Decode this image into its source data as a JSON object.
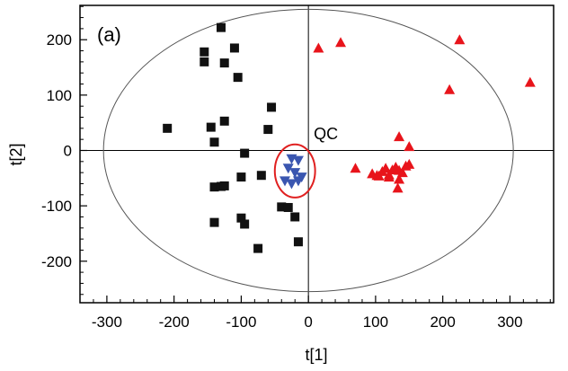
{
  "chart_data": {
    "type": "scatter",
    "title": "",
    "panel_label": "(a)",
    "xlabel": "t[1]",
    "ylabel": "t[2]",
    "xlim": [
      -340,
      365
    ],
    "ylim": [
      -275,
      262
    ],
    "xticks": [
      -300,
      -200,
      -100,
      0,
      100,
      200,
      300
    ],
    "yticks": [
      -200,
      -100,
      0,
      100,
      200
    ],
    "x_tick_labels": [
      "-300",
      "-200",
      "-100",
      "0",
      "100",
      "200",
      "300"
    ],
    "y_tick_labels": [
      "-200",
      "-100",
      "0",
      "100",
      "200"
    ],
    "grid": false,
    "legend": "none",
    "ellipse": {
      "center": [
        0,
        0
      ],
      "rx": 305,
      "ry": 255,
      "color": "#555555"
    },
    "qc_ellipse": {
      "center": [
        -20,
        -37
      ],
      "rx": 30,
      "ry": 48,
      "color": "#e02020"
    },
    "annotations": [
      {
        "text": "QC",
        "x": 8,
        "y": 20
      }
    ],
    "series": [
      {
        "marker": "square",
        "color": "#111111",
        "points": [
          [
            -130,
            222
          ],
          [
            -155,
            178
          ],
          [
            -110,
            185
          ],
          [
            -125,
            158
          ],
          [
            -155,
            160
          ],
          [
            -105,
            132
          ],
          [
            -55,
            78
          ],
          [
            -210,
            40
          ],
          [
            -145,
            42
          ],
          [
            -125,
            53
          ],
          [
            -140,
            15
          ],
          [
            -60,
            38
          ],
          [
            -95,
            -5
          ],
          [
            -70,
            -45
          ],
          [
            -100,
            -48
          ],
          [
            -140,
            -66
          ],
          [
            -130,
            -65
          ],
          [
            -125,
            -64
          ],
          [
            -40,
            -102
          ],
          [
            -30,
            -103
          ],
          [
            -20,
            -120
          ],
          [
            -100,
            -122
          ],
          [
            -140,
            -130
          ],
          [
            -95,
            -133
          ],
          [
            -75,
            -177
          ],
          [
            -15,
            -165
          ]
        ]
      },
      {
        "marker": "triangle-down",
        "color": "#3a56b0",
        "points": [
          [
            -25,
            -15
          ],
          [
            -15,
            -18
          ],
          [
            -30,
            -32
          ],
          [
            -20,
            -40
          ],
          [
            -10,
            -48
          ],
          [
            -35,
            -55
          ],
          [
            -25,
            -60
          ],
          [
            -15,
            -55
          ]
        ]
      },
      {
        "marker": "triangle-up",
        "color": "#e8141b",
        "points": [
          [
            15,
            185
          ],
          [
            48,
            195
          ],
          [
            225,
            200
          ],
          [
            210,
            110
          ],
          [
            330,
            123
          ],
          [
            135,
            25
          ],
          [
            150,
            7
          ],
          [
            70,
            -32
          ],
          [
            95,
            -42
          ],
          [
            105,
            -46
          ],
          [
            110,
            -38
          ],
          [
            115,
            -32
          ],
          [
            120,
            -44
          ],
          [
            125,
            -35
          ],
          [
            130,
            -30
          ],
          [
            135,
            -36
          ],
          [
            140,
            -40
          ],
          [
            145,
            -28
          ],
          [
            150,
            -25
          ],
          [
            135,
            -52
          ],
          [
            133,
            -68
          ],
          [
            120,
            -48
          ],
          [
            102,
            -45
          ]
        ]
      }
    ]
  }
}
